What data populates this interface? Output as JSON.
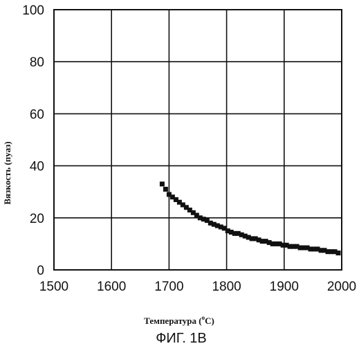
{
  "chart_data": {
    "type": "scatter",
    "title": "",
    "xlabel": "Температура (",
    "xlabel_superscript": "o",
    "xlabel_unit": "C)",
    "ylabel": "Вязкость (пуаз)",
    "caption": "ФИГ. 1В",
    "xlim": [
      1500,
      2000
    ],
    "ylim": [
      0,
      100
    ],
    "x_ticks": [
      "1500",
      "1600",
      "1700",
      "1800",
      "1900",
      "2000"
    ],
    "y_ticks": [
      "0",
      "20",
      "40",
      "60",
      "80",
      "100"
    ],
    "grid": true,
    "marker": "square",
    "marker_color": "#111111",
    "series": [
      {
        "x": [
          1688,
          1694,
          1700,
          1706,
          1712,
          1718,
          1724,
          1730,
          1736,
          1742,
          1748,
          1754,
          1760,
          1766,
          1772,
          1778,
          1784,
          1790,
          1796,
          1802,
          1808,
          1814,
          1820,
          1826,
          1832,
          1838,
          1844,
          1850,
          1856,
          1862,
          1868,
          1874,
          1880,
          1886,
          1892,
          1898,
          1904,
          1910,
          1916,
          1922,
          1928,
          1934,
          1940,
          1946,
          1952,
          1958,
          1964,
          1970,
          1976,
          1982,
          1988,
          1994
        ],
        "y": [
          33,
          31,
          29,
          28,
          27,
          26,
          25,
          24,
          23,
          22,
          21,
          20,
          19.5,
          19,
          18,
          17.5,
          17,
          16.5,
          16,
          15,
          14.5,
          14,
          14,
          13.5,
          13,
          12.5,
          12,
          12,
          11.5,
          11,
          11,
          10.5,
          10,
          10,
          10,
          9.5,
          9.5,
          9,
          9,
          9,
          8.5,
          8.5,
          8.5,
          8,
          8,
          8,
          7.5,
          7.5,
          7,
          7,
          7,
          6.5
        ]
      }
    ]
  }
}
